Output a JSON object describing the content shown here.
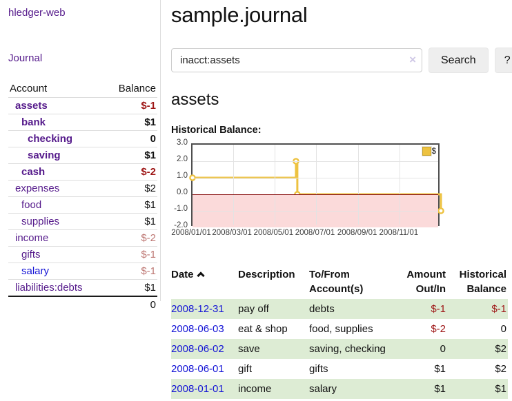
{
  "colors": {
    "purple": "#551a8b",
    "blue": "#1414d6",
    "neg": "#9e1616",
    "neg-soft": "#bd7672",
    "green-row": "#ddecd4",
    "gold": "#edc240",
    "gold-dark": "#c9a227",
    "pink": "#fbdada",
    "zero-red": "#8c1717",
    "chart-border": "#4f4f4f",
    "grid": "#e3e3e3",
    "btn-bg": "#eeeeee",
    "border": "#cccccc",
    "sep": "#dddddd",
    "axis-text": "#3d3d3d"
  },
  "sidebar": {
    "brand": "hledger-web",
    "journal_label": "Journal",
    "accounts": {
      "header_account": "Account",
      "header_balance": "Balance",
      "rows": [
        {
          "name": "assets",
          "depth": 1,
          "bold": true,
          "link": "purple",
          "balance": "$-1",
          "tone": "neg"
        },
        {
          "name": "bank",
          "depth": 2,
          "bold": true,
          "link": "purple",
          "balance": "$1",
          "tone": ""
        },
        {
          "name": "checking",
          "depth": 3,
          "bold": true,
          "link": "purple",
          "balance": "0",
          "tone": ""
        },
        {
          "name": "saving",
          "depth": 3,
          "bold": true,
          "link": "purple",
          "balance": "$1",
          "tone": ""
        },
        {
          "name": "cash",
          "depth": 2,
          "bold": true,
          "link": "purple",
          "balance": "$-2",
          "tone": "neg"
        },
        {
          "name": "expenses",
          "depth": 1,
          "bold": false,
          "link": "purple",
          "balance": "$2",
          "tone": ""
        },
        {
          "name": "food",
          "depth": 2,
          "bold": false,
          "link": "purple",
          "balance": "$1",
          "tone": ""
        },
        {
          "name": "supplies",
          "depth": 2,
          "bold": false,
          "link": "purple",
          "balance": "$1",
          "tone": ""
        },
        {
          "name": "income",
          "depth": 1,
          "bold": false,
          "link": "purple",
          "balance": "$-2",
          "tone": "neg-soft"
        },
        {
          "name": "gifts",
          "depth": 2,
          "bold": false,
          "link": "purple",
          "balance": "$-1",
          "tone": "neg-soft"
        },
        {
          "name": "salary",
          "depth": 2,
          "bold": false,
          "link": "blue",
          "balance": "$-1",
          "tone": "neg-soft"
        },
        {
          "name": "liabilities:debts",
          "depth": 1,
          "bold": false,
          "link": "purple",
          "balance": "$1",
          "tone": ""
        }
      ],
      "total": "0"
    }
  },
  "main": {
    "title": "sample.journal",
    "search": {
      "value": "inacct:assets",
      "clear_icon": "×",
      "button_label": "Search",
      "help_label": "?"
    },
    "account_heading": "assets",
    "register": {
      "headers": [
        {
          "label": "Date",
          "sort": "asc",
          "align": "left"
        },
        {
          "label": "Description",
          "align": "left"
        },
        {
          "label": "To/From Account(s)",
          "align": "left"
        },
        {
          "label": "Amount Out/In",
          "align": "right"
        },
        {
          "label": "Historical Balance",
          "align": "right"
        }
      ],
      "rows": [
        {
          "date": "2008-12-31",
          "description": "pay off",
          "accounts": "debts",
          "amount": "$-1",
          "amount_neg": true,
          "balance": "$-1",
          "balance_neg": true
        },
        {
          "date": "2008-06-03",
          "description": "eat & shop",
          "accounts": "food, supplies",
          "amount": "$-2",
          "amount_neg": true,
          "balance": "0",
          "balance_neg": false
        },
        {
          "date": "2008-06-02",
          "description": "save",
          "accounts": "saving, checking",
          "amount": "0",
          "amount_neg": false,
          "balance": "$2",
          "balance_neg": false
        },
        {
          "date": "2008-06-01",
          "description": "gift",
          "accounts": "gifts",
          "amount": "$1",
          "amount_neg": false,
          "balance": "$2",
          "balance_neg": false
        },
        {
          "date": "2008-01-01",
          "description": "income",
          "accounts": "salary",
          "amount": "$1",
          "amount_neg": false,
          "balance": "$1",
          "balance_neg": false
        }
      ]
    }
  },
  "chart_data": {
    "type": "line",
    "title": "Historical Balance:",
    "step": true,
    "series": [
      {
        "name": "$",
        "color": "#edc240",
        "points": [
          {
            "date": "2008-01-01",
            "day": 0,
            "value": 1
          },
          {
            "date": "2008-06-01",
            "day": 152,
            "value": 2
          },
          {
            "date": "2008-06-03",
            "day": 154,
            "value": 0
          },
          {
            "date": "2008-12-31",
            "day": 365,
            "value": -1
          }
        ]
      }
    ],
    "ylim": [
      -2,
      3
    ],
    "yticks": [
      3.0,
      2.0,
      1.0,
      0.0,
      -1.0,
      -2.0
    ],
    "xticks": [
      {
        "label": "2008/01/01",
        "day": 0
      },
      {
        "label": "2008/03/01",
        "day": 60
      },
      {
        "label": "2008/05/01",
        "day": 121
      },
      {
        "label": "2008/07/01",
        "day": 182
      },
      {
        "label": "2008/09/01",
        "day": 244
      },
      {
        "label": "2008/11/01",
        "day": 305
      }
    ],
    "x_span_days": 365,
    "grid": true,
    "legend_position": "top-right",
    "negative_region_fill": "#fbdada",
    "zero_line_color": "#8c1717"
  }
}
